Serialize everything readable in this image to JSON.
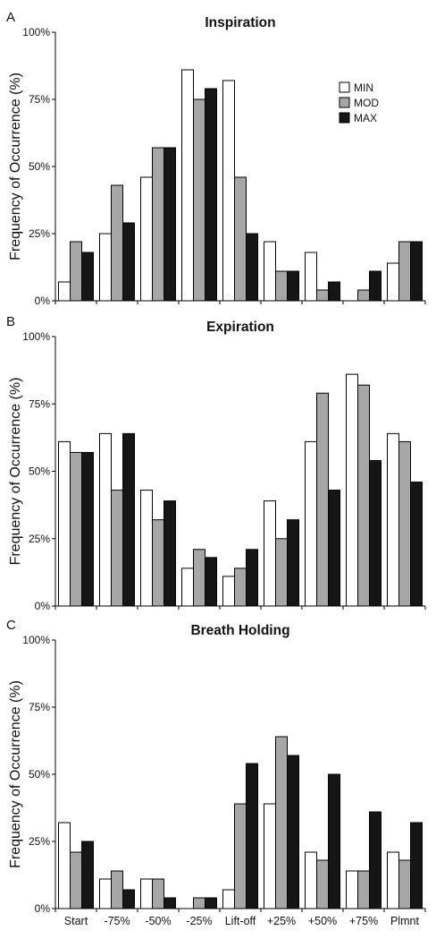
{
  "legend": {
    "min_label": "MIN",
    "mod_label": "MOD",
    "max_label": "MAX",
    "placement": "top-right of panel A"
  },
  "colors": {
    "MIN": "#ffffff",
    "MOD": "#a6a6a6",
    "MAX": "#161616",
    "bar_stroke": "#000000"
  },
  "chart_data": [
    {
      "type": "bar",
      "panel": "A",
      "title": "Inspiration",
      "ylabel": "Frequency of Occurrence (%)",
      "xlabel": "",
      "ylim": [
        0,
        100
      ],
      "yticks": [
        "0%",
        "25%",
        "50%",
        "75%",
        "100%"
      ],
      "categories": [
        "Start",
        "-75%",
        "-50%",
        "-25%",
        "Lift-off",
        "+25%",
        "+50%",
        "+75%",
        "Plmnt"
      ],
      "series": [
        {
          "name": "MIN",
          "values": [
            7,
            25,
            46,
            86,
            82,
            22,
            18,
            0,
            14
          ]
        },
        {
          "name": "MOD",
          "values": [
            22,
            43,
            57,
            75,
            46,
            11,
            4,
            4,
            22
          ]
        },
        {
          "name": "MAX",
          "values": [
            18,
            29,
            57,
            79,
            25,
            11,
            7,
            11,
            22
          ]
        }
      ]
    },
    {
      "type": "bar",
      "panel": "B",
      "title": "Expiration",
      "ylabel": "Frequency of Occurrence (%)",
      "xlabel": "",
      "ylim": [
        0,
        100
      ],
      "yticks": [
        "0%",
        "25%",
        "50%",
        "75%",
        "100%"
      ],
      "categories": [
        "Start",
        "-75%",
        "-50%",
        "-25%",
        "Lift-off",
        "+25%",
        "+50%",
        "+75%",
        "Plmnt"
      ],
      "series": [
        {
          "name": "MIN",
          "values": [
            61,
            64,
            43,
            14,
            11,
            39,
            61,
            86,
            64
          ]
        },
        {
          "name": "MOD",
          "values": [
            57,
            43,
            32,
            21,
            14,
            25,
            79,
            82,
            61
          ]
        },
        {
          "name": "MAX",
          "values": [
            57,
            64,
            39,
            18,
            21,
            32,
            43,
            54,
            46
          ]
        }
      ]
    },
    {
      "type": "bar",
      "panel": "C",
      "title": "Breath Holding",
      "ylabel": "Frequency of Occurrence (%)",
      "xlabel": "",
      "ylim": [
        0,
        100
      ],
      "yticks": [
        "0%",
        "25%",
        "50%",
        "75%",
        "100%"
      ],
      "categories": [
        "Start",
        "-75%",
        "-50%",
        "-25%",
        "Lift-off",
        "+25%",
        "+50%",
        "+75%",
        "Plmnt"
      ],
      "series": [
        {
          "name": "MIN",
          "values": [
            32,
            11,
            11,
            0,
            7,
            39,
            21,
            14,
            21
          ]
        },
        {
          "name": "MOD",
          "values": [
            21,
            14,
            11,
            4,
            39,
            64,
            18,
            14,
            18
          ]
        },
        {
          "name": "MAX",
          "values": [
            25,
            7,
            4,
            4,
            54,
            57,
            50,
            36,
            32
          ]
        }
      ]
    }
  ]
}
